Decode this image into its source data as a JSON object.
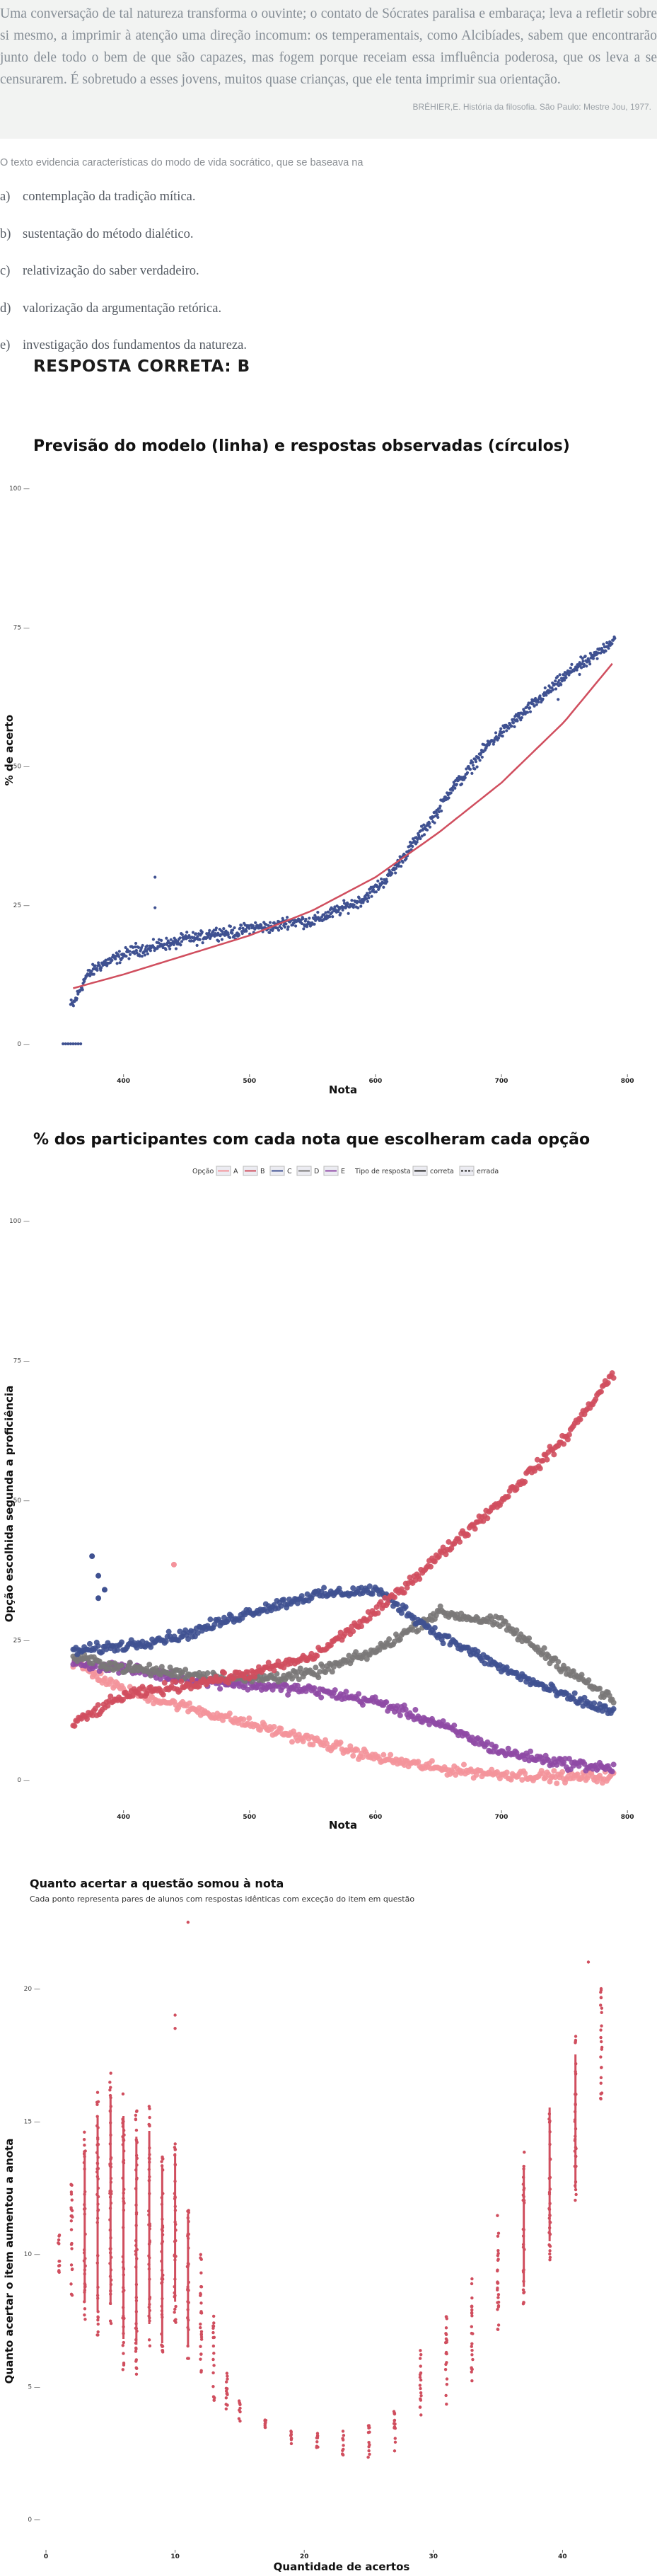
{
  "passage": {
    "text": "Uma conversação de tal natureza transforma o ouvinte; o contato de Sócrates paralisa e embaraça; leva a refletir sobre si mesmo, a imprimir à atenção uma direção incomum: os temperamentais, como Alcibíades, sabem que encontrarão junto dele todo o bem de que são capazes, mas fogem porque receiam essa imfluência poderosa, que os leva a se censurarem. É sobretudo a esses jovens, muitos quase crianças, que ele tenta imprimir sua orientação.",
    "source": "BRÉHIER,E. História da filosofia. São Paulo: Mestre Jou, 1977."
  },
  "question": "O texto evidencia características do modo de vida socrático, que se baseava na",
  "options": [
    {
      "letter": "a)",
      "text": "contemplação da tradição mítica."
    },
    {
      "letter": "b)",
      "text": "sustentação do método dialético."
    },
    {
      "letter": "c)",
      "text": "relativização do saber verdadeiro."
    },
    {
      "letter": "d)",
      "text": "valorização da argumentação retórica."
    },
    {
      "letter": "e)",
      "text": "investigação dos fundamentos da natureza."
    }
  ],
  "answer": "RESPOSTA CORRETA: B",
  "colors": {
    "navy": "#3f5191",
    "red": "#d04e5e",
    "pink": "#f4939b",
    "grey": "#7a7878",
    "purple": "#8f4aa5"
  },
  "chart_data": [
    {
      "type": "scatter",
      "title": "Previsão do modelo (linha) e respostas observadas (círculos)",
      "xlabel": "Nota",
      "ylabel": "% de acerto",
      "xlim": [
        330,
        810
      ],
      "ylim": [
        0,
        100
      ],
      "x_ticks": [
        "400",
        "500",
        "600",
        "700",
        "800"
      ],
      "y_ticks": [
        "0",
        "25",
        "50",
        "75",
        "100"
      ],
      "series": [
        {
          "kind": "points",
          "color": "navy",
          "x": [
            360,
            370,
            380,
            390,
            400,
            410,
            420,
            430,
            440,
            450,
            460,
            470,
            480,
            490,
            500,
            510,
            520,
            530,
            540,
            550,
            560,
            570,
            580,
            590,
            600,
            610,
            620,
            630,
            640,
            650,
            660,
            670,
            680,
            690,
            700,
            710,
            720,
            730,
            740,
            750,
            760,
            770,
            780,
            790
          ],
          "values": [
            7,
            12,
            14,
            15,
            16,
            17,
            17,
            18,
            18,
            19,
            19,
            20,
            20,
            20,
            21,
            21,
            21,
            22,
            22,
            22,
            23,
            24,
            25,
            26,
            28,
            30,
            33,
            36,
            39,
            42,
            46,
            48,
            51,
            54,
            56,
            58,
            60,
            62,
            64,
            66,
            68,
            69,
            71,
            73
          ]
        },
        {
          "kind": "line",
          "color": "red",
          "x": [
            360,
            400,
            450,
            500,
            550,
            600,
            650,
            700,
            750,
            790
          ],
          "values": [
            10,
            12.5,
            16,
            19.5,
            24,
            30,
            38,
            47,
            58,
            69
          ]
        }
      ]
    },
    {
      "type": "scatter",
      "title": "% dos participantes com cada nota que escolheram cada opção",
      "xlabel": "Nota",
      "ylabel": "Opção escolhida segunda a proficiência",
      "xlim": [
        330,
        810
      ],
      "ylim": [
        0,
        100
      ],
      "x_ticks": [
        "400",
        "500",
        "600",
        "700",
        "800"
      ],
      "y_ticks": [
        "0",
        "25",
        "50",
        "75",
        "100"
      ],
      "legend": {
        "option_title": "Opção",
        "options": [
          "A",
          "B",
          "C",
          "D",
          "E"
        ],
        "type_title": "Tipo de resposta",
        "types": [
          "correta",
          "errada"
        ]
      },
      "series": [
        {
          "name": "A",
          "color": "pink",
          "x": [
            360,
            400,
            450,
            500,
            550,
            600,
            650,
            700,
            750,
            790
          ],
          "values": [
            21,
            16,
            13,
            10,
            7,
            4,
            2,
            1,
            0.5,
            0.5
          ]
        },
        {
          "name": "B",
          "color": "red",
          "x": [
            360,
            400,
            450,
            500,
            550,
            600,
            650,
            700,
            750,
            790
          ],
          "values": [
            10,
            15,
            17,
            19,
            22,
            30,
            40,
            50,
            61,
            73
          ]
        },
        {
          "name": "C",
          "color": "navy",
          "x": [
            360,
            400,
            450,
            500,
            550,
            600,
            650,
            700,
            750,
            790
          ],
          "values": [
            23,
            24,
            26,
            30,
            33,
            34,
            26,
            20,
            15,
            12
          ]
        },
        {
          "name": "D",
          "color": "grey",
          "x": [
            360,
            400,
            450,
            500,
            550,
            600,
            650,
            700,
            750,
            790
          ],
          "values": [
            22,
            20,
            19,
            18,
            19,
            23,
            30,
            28,
            20,
            14
          ]
        },
        {
          "name": "E",
          "color": "purple",
          "x": [
            360,
            400,
            450,
            500,
            550,
            600,
            650,
            700,
            750,
            790
          ],
          "values": [
            21,
            20,
            18,
            17,
            16,
            14,
            10,
            5,
            3,
            2
          ]
        }
      ]
    },
    {
      "type": "scatter",
      "title": "Quanto acertar a questão somou à nota",
      "subtitle": "Cada ponto representa pares de alunos com respostas idênticas com exceção do item em questão",
      "xlabel": "Quantidade de acertos",
      "ylabel": "Quanto acertar o item aumentou a anota",
      "xlim": [
        0,
        46
      ],
      "ylim": [
        0,
        22
      ],
      "x_ticks": [
        "0",
        "10",
        "20",
        "30",
        "40"
      ],
      "y_ticks": [
        "0",
        "5",
        "10",
        "15",
        "20"
      ],
      "series": [
        {
          "color": "red",
          "x": [
            1,
            2,
            3,
            4,
            5,
            6,
            7,
            8,
            9,
            10,
            11,
            12,
            13,
            14,
            15,
            17,
            19,
            21,
            23,
            25,
            27,
            29,
            31,
            33,
            35,
            37,
            39,
            41,
            43
          ],
          "values": [
            10,
            10.5,
            11,
            11.5,
            12,
            11,
            10.5,
            11,
            10,
            11,
            9,
            8,
            6,
            5,
            4,
            3.5,
            3,
            3,
            2.8,
            3,
            3.5,
            5,
            6,
            7,
            9,
            11,
            13,
            15,
            18
          ],
          "spread": [
            0.4,
            1.2,
            2.0,
            2.6,
            2.8,
            3.0,
            2.8,
            2.6,
            2.4,
            2.0,
            1.8,
            1.4,
            1.0,
            0.6,
            0.3,
            0.2,
            0.2,
            0.2,
            0.3,
            0.4,
            0.6,
            0.8,
            1.0,
            1.2,
            1.4,
            1.6,
            1.8,
            1.8,
            1.2
          ]
        }
      ]
    }
  ]
}
